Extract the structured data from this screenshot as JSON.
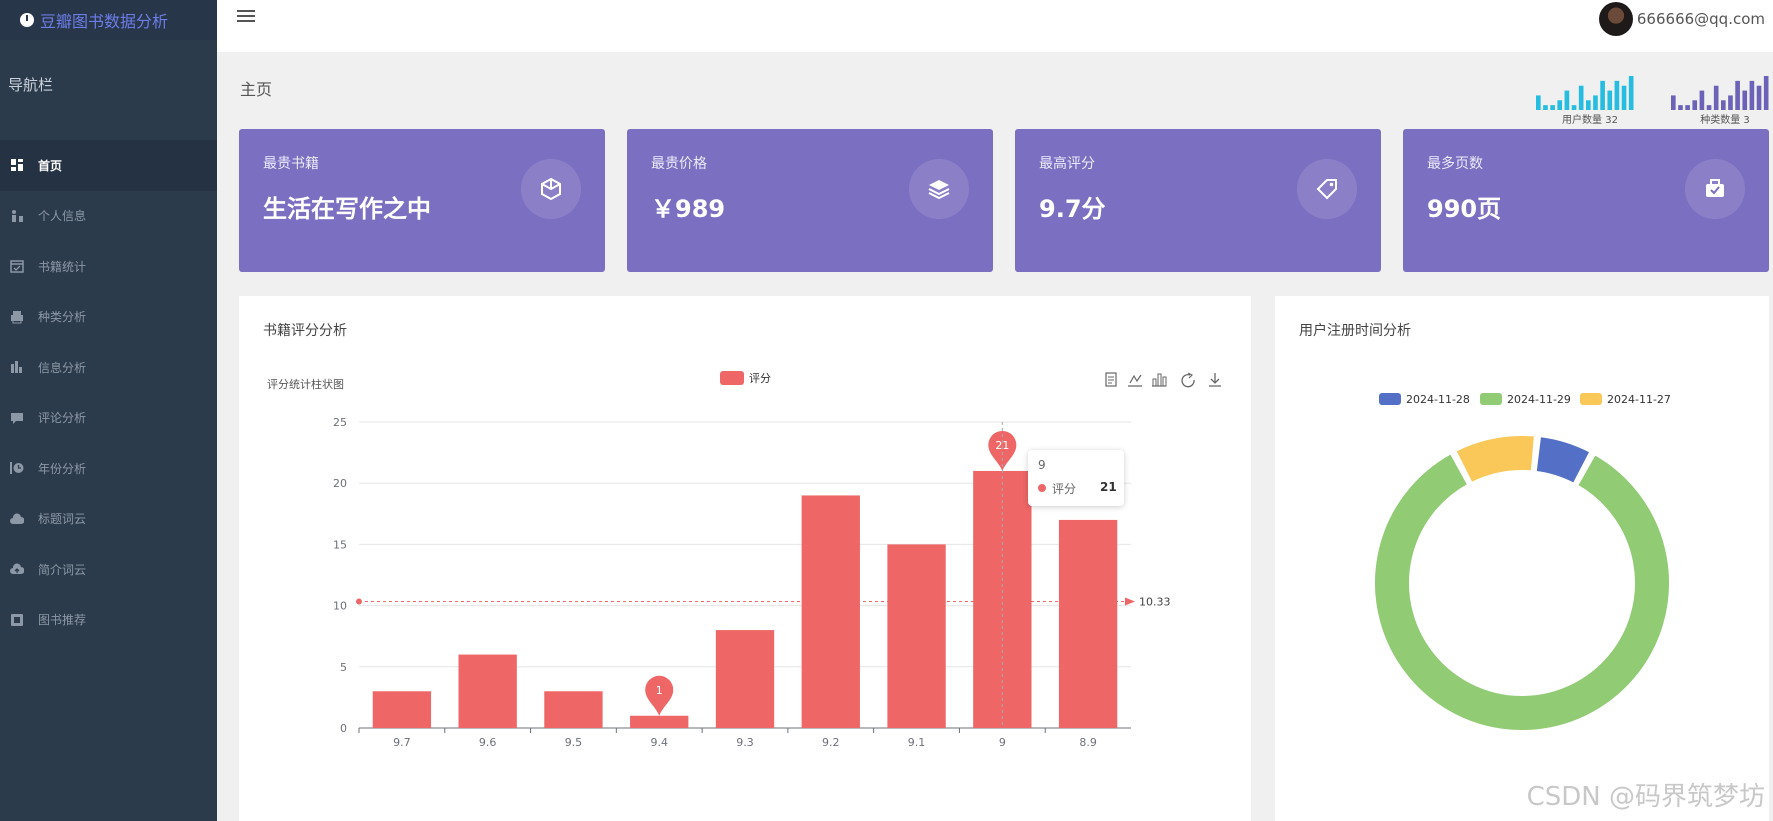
{
  "app": {
    "title": "豆瓣图书数据分析"
  },
  "nav": {
    "header": "导航栏",
    "items": [
      {
        "label": "首页",
        "icon": "dashboard-icon",
        "active": true
      },
      {
        "label": "个人信息",
        "icon": "user-profile-icon",
        "active": false
      },
      {
        "label": "书籍统计",
        "icon": "calendar-icon",
        "active": false
      },
      {
        "label": "种类分析",
        "icon": "print-icon",
        "active": false
      },
      {
        "label": "信息分析",
        "icon": "bar-chart-icon",
        "active": false
      },
      {
        "label": "评论分析",
        "icon": "comment-icon",
        "active": false
      },
      {
        "label": "年份分析",
        "icon": "history-icon",
        "active": false
      },
      {
        "label": "标题词云",
        "icon": "cloud-icon",
        "active": false
      },
      {
        "label": "简介词云",
        "icon": "cloud-upload-icon",
        "active": false
      },
      {
        "label": "图书推荐",
        "icon": "book-icon",
        "active": false
      }
    ]
  },
  "user": {
    "email": "666666@qq.com"
  },
  "page": {
    "title": "主页"
  },
  "sparklines": [
    {
      "label": "用户数量 32",
      "color": "#26bde0",
      "values": [
        3,
        1,
        1,
        2,
        4,
        1,
        5,
        2,
        3,
        6,
        4,
        6,
        5,
        7
      ]
    },
    {
      "label": "种类数量 3",
      "color": "#6c63b8",
      "values": [
        3,
        1,
        1,
        2,
        4,
        1,
        5,
        2,
        3,
        6,
        4,
        6,
        5,
        7
      ]
    }
  ],
  "cards": [
    {
      "label": "最贵书籍",
      "value": "生活在写作之中",
      "icon": "cube-icon"
    },
    {
      "label": "最贵价格",
      "value": "￥989",
      "icon": "layers-icon"
    },
    {
      "label": "最高评分",
      "value": "9.7分",
      "icon": "tag-icon"
    },
    {
      "label": "最多页数",
      "value": "990页",
      "icon": "briefcase-icon"
    }
  ],
  "bar_panel": {
    "title": "书籍评分分析"
  },
  "pie_panel": {
    "title": "用户注册时间分析"
  },
  "watermark": "CSDN @码界筑梦坊",
  "chart_data": [
    {
      "type": "bar",
      "title": "评分统计柱状图",
      "categories": [
        "9.7",
        "9.6",
        "9.5",
        "9.4",
        "9.3",
        "9.2",
        "9.1",
        "9",
        "8.9"
      ],
      "series": [
        {
          "name": "评分",
          "values": [
            3,
            6,
            3,
            1,
            8,
            19,
            15,
            21,
            17
          ],
          "color": "#ee6666"
        }
      ],
      "ylim": [
        0,
        25
      ],
      "yticks": [
        0,
        5,
        10,
        15,
        20,
        25
      ],
      "grid": true,
      "legend_position": "top-center",
      "mark_points": [
        {
          "label": "21",
          "category": "9",
          "value": 21
        },
        {
          "label": "1",
          "category": "9.4",
          "value": 1
        }
      ],
      "mark_line": {
        "type": "average",
        "value": 10.33,
        "label": "10.33"
      },
      "tooltip": {
        "title": "9",
        "series": "评分",
        "value": "21"
      },
      "toolbox_icons": [
        "data-view-icon",
        "line-chart-icon",
        "bar-chart-icon",
        "restore-icon",
        "download-icon"
      ]
    },
    {
      "type": "pie",
      "donut": true,
      "categories": [
        "2024-11-28",
        "2024-11-29",
        "2024-11-27"
      ],
      "values": [
        2,
        27,
        3
      ],
      "colors": [
        "#5470c6",
        "#91cc75",
        "#fac858"
      ],
      "legend_position": "top-center"
    }
  ]
}
